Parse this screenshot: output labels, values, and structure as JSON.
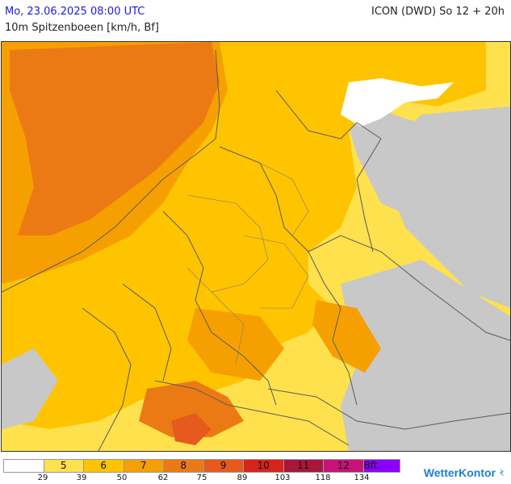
{
  "header": {
    "date_time": "Mo, 23.06.2025 08:00 UTC",
    "model_run": "ICON (DWD) So 12 + 20h",
    "parameter": "10m Spitzenboeen [km/h, Bf]"
  },
  "map": {
    "region": "Central Europe",
    "colors": {
      "no_data": "#c8c8c8",
      "class_0": "#ffffff",
      "class_5": "#ffe14d",
      "class_6": "#ffc400",
      "class_7": "#f5a000",
      "class_8": "#ec7a14",
      "class_9": "#e65a1e",
      "class_10": "#d8231a",
      "class_11": "#a8163c",
      "class_12": "#c8127a",
      "class_bft": "#8c00ff",
      "border": "#5a5a5a"
    }
  },
  "legend": {
    "cells": [
      {
        "label": "",
        "color": "#ffffff"
      },
      {
        "label": "5",
        "color": "#ffe14d"
      },
      {
        "label": "6",
        "color": "#ffc400"
      },
      {
        "label": "7",
        "color": "#f5a000"
      },
      {
        "label": "8",
        "color": "#ec7a14"
      },
      {
        "label": "9",
        "color": "#e65a1e"
      },
      {
        "label": "10",
        "color": "#d8231a"
      },
      {
        "label": "11",
        "color": "#a8163c"
      },
      {
        "label": "12",
        "color": "#c8127a"
      },
      {
        "label": "Bft.",
        "color": "#8c00ff"
      }
    ],
    "ticks": [
      "29",
      "39",
      "50",
      "62",
      "75",
      "89",
      "103",
      "118",
      "134"
    ]
  },
  "brand": {
    "name": "WetterKontor",
    "icon": "weather-logo-icon"
  }
}
